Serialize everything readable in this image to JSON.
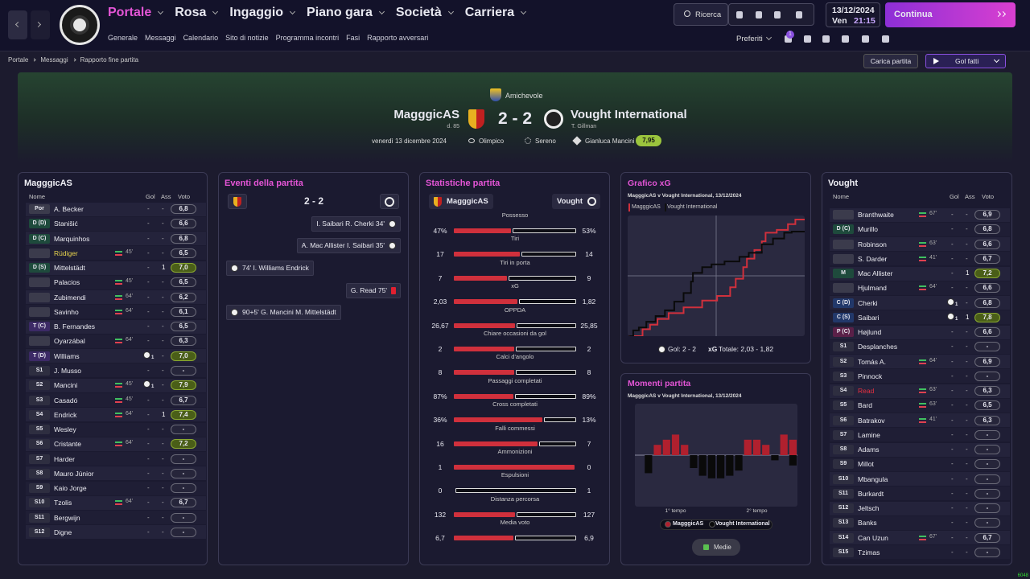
{
  "nav": {
    "menu": [
      "Portale",
      "Rosa",
      "Ingaggio",
      "Piano gara",
      "Società",
      "Carriera"
    ],
    "submenu": [
      "Generale",
      "Messaggi",
      "Calendario",
      "Sito di notizie",
      "Programma incontri",
      "Fasi",
      "Rapporto avversari"
    ],
    "search": "Ricerca",
    "date": "13/12/2024",
    "day": "Ven",
    "time": "21:15",
    "continue": "Continua",
    "favourites": "Preferiti",
    "badge": "1"
  },
  "breadcrumbs": [
    "Portale",
    "Messaggi",
    "Rapporto fine partita"
  ],
  "actions": [
    "Carica partita",
    "Gol fatti"
  ],
  "header": {
    "competition": "Amichevole",
    "home": "MagggicAS",
    "home_sub": "d. 85",
    "score": "2 - 2",
    "away": "Vought International",
    "away_sub": "T. Gillman",
    "date": "venerdì 13 dicembre 2024",
    "stadium": "Olimpico",
    "weather": "Sereno",
    "referee": "Gianluca Mancini",
    "referee_rating": "7,95"
  },
  "home_lineup": {
    "title": "MagggicAS",
    "columns": [
      "Nome",
      "Gol",
      "Ass",
      "Voto"
    ],
    "rows": [
      {
        "pos": "Por",
        "name": "A. Becker",
        "sub": null,
        "gol": "-",
        "ass": "-",
        "voto": "6,8"
      },
      {
        "pos": "D (D)",
        "name": "Stanišić",
        "sub": null,
        "gol": "-",
        "ass": "-",
        "voto": "6,6"
      },
      {
        "pos": "D (C)",
        "name": "Marquinhos",
        "sub": null,
        "gol": "-",
        "ass": "-",
        "voto": "6,8"
      },
      {
        "pos": null,
        "name": "Rüdiger",
        "sub": "45'",
        "gol": "-",
        "ass": "-",
        "voto": "6,5",
        "card": "yellow"
      },
      {
        "pos": "D (S)",
        "name": "Mittelstädt",
        "sub": null,
        "gol": "-",
        "ass": 1,
        "voto": "7,0"
      },
      {
        "pos": null,
        "name": "Palacios",
        "sub": "45'",
        "gol": "-",
        "ass": "-",
        "voto": "6,5"
      },
      {
        "pos": null,
        "name": "Zubimendi",
        "sub": "64'",
        "gol": "-",
        "ass": "-",
        "voto": "6,2"
      },
      {
        "pos": null,
        "name": "Savinho",
        "sub": "64'",
        "gol": "-",
        "ass": "-",
        "voto": "6,1"
      },
      {
        "pos": "T (C)",
        "name": "B. Fernandes",
        "sub": null,
        "gol": "-",
        "ass": "-",
        "voto": "6,5"
      },
      {
        "pos": null,
        "name": "Oyarzábal",
        "sub": "64'",
        "gol": "-",
        "ass": "-",
        "voto": "6,3"
      },
      {
        "pos": "T (D)",
        "name": "Williams",
        "sub": null,
        "gol": 1,
        "ass": "-",
        "voto": "7,0"
      },
      {
        "pos": "S1",
        "name": "J. Musso",
        "sub": null,
        "gol": "-",
        "ass": "-",
        "voto": "-"
      },
      {
        "pos": "S2",
        "name": "Mancini",
        "sub": "45'",
        "gol": 1,
        "ass": "-",
        "voto": "7,9"
      },
      {
        "pos": "S3",
        "name": "Casadó",
        "sub": "45'",
        "gol": "-",
        "ass": "-",
        "voto": "6,7"
      },
      {
        "pos": "S4",
        "name": "Endrick",
        "sub": "64'",
        "gol": "-",
        "ass": 1,
        "voto": "7,4"
      },
      {
        "pos": "S5",
        "name": "Wesley",
        "sub": null,
        "gol": "-",
        "ass": "-",
        "voto": "-"
      },
      {
        "pos": "S6",
        "name": "Cristante",
        "sub": "64'",
        "gol": "-",
        "ass": "-",
        "voto": "7,2"
      },
      {
        "pos": "S7",
        "name": "Harder",
        "sub": null,
        "gol": "-",
        "ass": "-",
        "voto": "-"
      },
      {
        "pos": "S8",
        "name": "Mauro Júnior",
        "sub": null,
        "gol": "-",
        "ass": "-",
        "voto": "-"
      },
      {
        "pos": "S9",
        "name": "Kaio Jorge",
        "sub": null,
        "gol": "-",
        "ass": "-",
        "voto": "-"
      },
      {
        "pos": "S10",
        "name": "Tzolis",
        "sub": "64'",
        "gol": "-",
        "ass": "-",
        "voto": "6,7"
      },
      {
        "pos": "S11",
        "name": "Bergwijn",
        "sub": null,
        "gol": "-",
        "ass": "-",
        "voto": "-"
      },
      {
        "pos": "S12",
        "name": "Digne",
        "sub": null,
        "gol": "-",
        "ass": "-",
        "voto": "-"
      }
    ]
  },
  "events_panel": {
    "title": "Eventi della partita",
    "score": "2 - 2",
    "events": [
      {
        "side": "away",
        "type": "goal",
        "text": "I. Saibari R. Cherki 34'"
      },
      {
        "side": "away",
        "type": "goal",
        "text": "A. Mac Allister I. Saibari 35'"
      },
      {
        "side": "home",
        "type": "goal",
        "text": "74' I. Williams Endrick"
      },
      {
        "side": "away",
        "type": "red_card",
        "text": "G. Read 75'"
      },
      {
        "side": "home",
        "type": "goal",
        "text": "90+5' G. Mancini M. Mittelstädt"
      }
    ]
  },
  "stats_panel": {
    "title": "Statistiche partita",
    "home": "MagggicAS",
    "away": "Vought",
    "rows": [
      {
        "label": "Possesso",
        "home": 47,
        "away": 53,
        "home_label": "47%",
        "away_label": "53%"
      },
      {
        "label": "Tiri",
        "home": 17,
        "away": 14
      },
      {
        "label": "Tiri in porta",
        "home": 7,
        "away": 9
      },
      {
        "label": "xG",
        "home": 2.03,
        "away": 1.82,
        "home_label": "2,03",
        "away_label": "1,82"
      },
      {
        "label": "OPPDA",
        "home": 26.67,
        "away": 25.85,
        "home_label": "26,67",
        "away_label": "25,85"
      },
      {
        "label": "Chiare occasioni da gol",
        "home": 2,
        "away": 2
      },
      {
        "label": "Calci d'angolo",
        "home": 8,
        "away": 8
      },
      {
        "label": "Passaggi completati",
        "home": 87,
        "away": 89,
        "home_label": "87%",
        "away_label": "89%"
      },
      {
        "label": "Cross completati",
        "home": 36,
        "away": 13,
        "home_label": "36%",
        "away_label": "13%"
      },
      {
        "label": "Falli commessi",
        "home": 16,
        "away": 7
      },
      {
        "label": "Ammonizioni",
        "home": 1,
        "away": 0
      },
      {
        "label": "Espulsioni",
        "home": 0,
        "away": 1
      },
      {
        "label": "Distanza percorsa",
        "home": 132,
        "away": 127
      },
      {
        "label": "Media voto",
        "home": 6.7,
        "away": 6.9,
        "home_label": "6,7",
        "away_label": "6,9"
      }
    ]
  },
  "away_lineup": {
    "title": "Vought",
    "columns": [
      "Nome",
      "Gol",
      "Ass",
      "Voto"
    ],
    "rows": [
      {
        "pos": null,
        "name": "Branthwaite",
        "sub": "67'",
        "gol": "-",
        "ass": "-",
        "voto": "6,9"
      },
      {
        "pos": "D (C)",
        "name": "Murillo",
        "sub": null,
        "gol": "-",
        "ass": "-",
        "voto": "6,8"
      },
      {
        "pos": null,
        "name": "Robinson",
        "sub": "63'",
        "gol": "-",
        "ass": "-",
        "voto": "6,6"
      },
      {
        "pos": null,
        "name": "S. Darder",
        "sub": "41'",
        "gol": "-",
        "ass": "-",
        "voto": "6,7"
      },
      {
        "pos": "M",
        "name": "Mac Allister",
        "sub": null,
        "gol": "-",
        "ass": 1,
        "voto": "7,2"
      },
      {
        "pos": null,
        "name": "Hjulmand",
        "sub": "64'",
        "gol": "-",
        "ass": "-",
        "voto": "6,6"
      },
      {
        "pos": "C (D)",
        "name": "Cherki",
        "sub": null,
        "gol": 1,
        "ass": "-",
        "voto": "6,8"
      },
      {
        "pos": "C (S)",
        "name": "Saibari",
        "sub": null,
        "gol": 1,
        "ass": 1,
        "voto": "7,8"
      },
      {
        "pos": "P (C)",
        "name": "Højlund",
        "sub": null,
        "gol": "-",
        "ass": "-",
        "voto": "6,6"
      },
      {
        "pos": "S1",
        "name": "Desplanches",
        "sub": null,
        "gol": "-",
        "ass": "-",
        "voto": "-"
      },
      {
        "pos": "S2",
        "name": "Tomás A.",
        "sub": "64'",
        "gol": "-",
        "ass": "-",
        "voto": "6,9"
      },
      {
        "pos": "S3",
        "name": "Pinnock",
        "sub": null,
        "gol": "-",
        "ass": "-",
        "voto": "-"
      },
      {
        "pos": "S4",
        "name": "Read",
        "sub": "63'",
        "gol": "-",
        "ass": "-",
        "voto": "6,3",
        "card": "red"
      },
      {
        "pos": "S5",
        "name": "Bard",
        "sub": "63'",
        "gol": "-",
        "ass": "-",
        "voto": "6,5"
      },
      {
        "pos": "S6",
        "name": "Batrakov",
        "sub": "41'",
        "gol": "-",
        "ass": "-",
        "voto": "6,3"
      },
      {
        "pos": "S7",
        "name": "Lamine",
        "sub": null,
        "gol": "-",
        "ass": "-",
        "voto": "-"
      },
      {
        "pos": "S8",
        "name": "Adams",
        "sub": null,
        "gol": "-",
        "ass": "-",
        "voto": "-"
      },
      {
        "pos": "S9",
        "name": "Millot",
        "sub": null,
        "gol": "-",
        "ass": "-",
        "voto": "-"
      },
      {
        "pos": "S10",
        "name": "Mbangula",
        "sub": null,
        "gol": "-",
        "ass": "-",
        "voto": "-"
      },
      {
        "pos": "S11",
        "name": "Burkardt",
        "sub": null,
        "gol": "-",
        "ass": "-",
        "voto": "-"
      },
      {
        "pos": "S12",
        "name": "Jeltsch",
        "sub": null,
        "gol": "-",
        "ass": "-",
        "voto": "-"
      },
      {
        "pos": "S13",
        "name": "Banks",
        "sub": null,
        "gol": "-",
        "ass": "-",
        "voto": "-"
      },
      {
        "pos": "S14",
        "name": "Can Uzun",
        "sub": "67'",
        "gol": "-",
        "ass": "-",
        "voto": "6,7"
      },
      {
        "pos": "S15",
        "name": "Tzimas",
        "sub": null,
        "gol": "-",
        "ass": "-",
        "voto": "-"
      }
    ]
  },
  "chart_data": [
    {
      "type": "line",
      "title": "Grafico xG",
      "subtitle": "MagggicAS v Vought International, 13/12/2024",
      "xlim": [
        0,
        95
      ],
      "ylim": [
        0,
        2.1
      ],
      "series": [
        {
          "name": "MagggicAS",
          "color": "#d0303c",
          "x": [
            0,
            8,
            8,
            12,
            12,
            16,
            16,
            22,
            22,
            30,
            30,
            40,
            40,
            48,
            48,
            55,
            55,
            58,
            58,
            62,
            62,
            64,
            64,
            68,
            68,
            72,
            72,
            74,
            74,
            80,
            80,
            86,
            86,
            90,
            90,
            95
          ],
          "values": [
            0,
            0,
            0.12,
            0.12,
            0.2,
            0.2,
            0.3,
            0.3,
            0.4,
            0.4,
            0.5,
            0.5,
            0.62,
            0.62,
            0.7,
            0.7,
            0.85,
            0.85,
            1.0,
            1.0,
            1.2,
            1.2,
            1.35,
            1.35,
            1.5,
            1.5,
            1.65,
            1.65,
            1.8,
            1.8,
            1.85,
            1.85,
            1.95,
            1.95,
            2.03,
            2.03
          ]
        },
        {
          "name": "Vought International",
          "color": "#0a0a0a",
          "x": [
            0,
            3,
            3,
            6,
            6,
            10,
            10,
            15,
            15,
            20,
            20,
            25,
            25,
            30,
            30,
            34,
            34,
            35,
            35,
            40,
            40,
            45,
            45,
            52,
            52,
            60,
            60,
            65,
            65,
            72,
            72,
            78,
            78,
            84,
            84,
            88,
            88,
            95
          ],
          "values": [
            0,
            0,
            0.1,
            0.1,
            0.15,
            0.15,
            0.25,
            0.25,
            0.35,
            0.35,
            0.45,
            0.45,
            0.6,
            0.6,
            0.75,
            0.75,
            0.95,
            0.95,
            1.1,
            1.1,
            1.2,
            1.2,
            1.25,
            1.25,
            1.3,
            1.3,
            1.38,
            1.38,
            1.45,
            1.45,
            1.6,
            1.6,
            1.7,
            1.7,
            1.8,
            1.8,
            1.82,
            1.82
          ]
        }
      ],
      "footer": [
        "Gol: 2 - 2",
        "xG",
        "Totale: 2,03 - 1,82"
      ]
    },
    {
      "type": "bar",
      "title": "Momenti partita",
      "subtitle": "MagggicAS v Vought International, 13/12/2024",
      "categories": [
        null,
        null,
        null,
        null,
        null,
        null,
        null,
        null,
        null,
        null,
        null,
        null,
        null,
        null,
        null,
        null,
        null,
        null
      ],
      "x_labels": [
        "1° tempo",
        "2° tempo"
      ],
      "ylim": [
        -1,
        1
      ],
      "series": [
        {
          "name": "MagggicAS",
          "color": "#b0202e",
          "values": [
            0,
            0,
            0.2,
            0.3,
            0.4,
            0.2,
            0,
            0,
            0,
            0,
            0,
            0,
            0.3,
            0.3,
            0.2,
            0,
            0.4,
            0.3
          ]
        },
        {
          "name": "Vought International",
          "color": "#0a0a0a",
          "values": [
            0,
            -0.35,
            0,
            0,
            0,
            0,
            -0.25,
            -0.4,
            -0.45,
            -0.45,
            -0.4,
            -0.3,
            0,
            0,
            0,
            -0.1,
            0,
            -0.2
          ]
        }
      ],
      "button": "Medie"
    }
  ],
  "overlay": "6048"
}
